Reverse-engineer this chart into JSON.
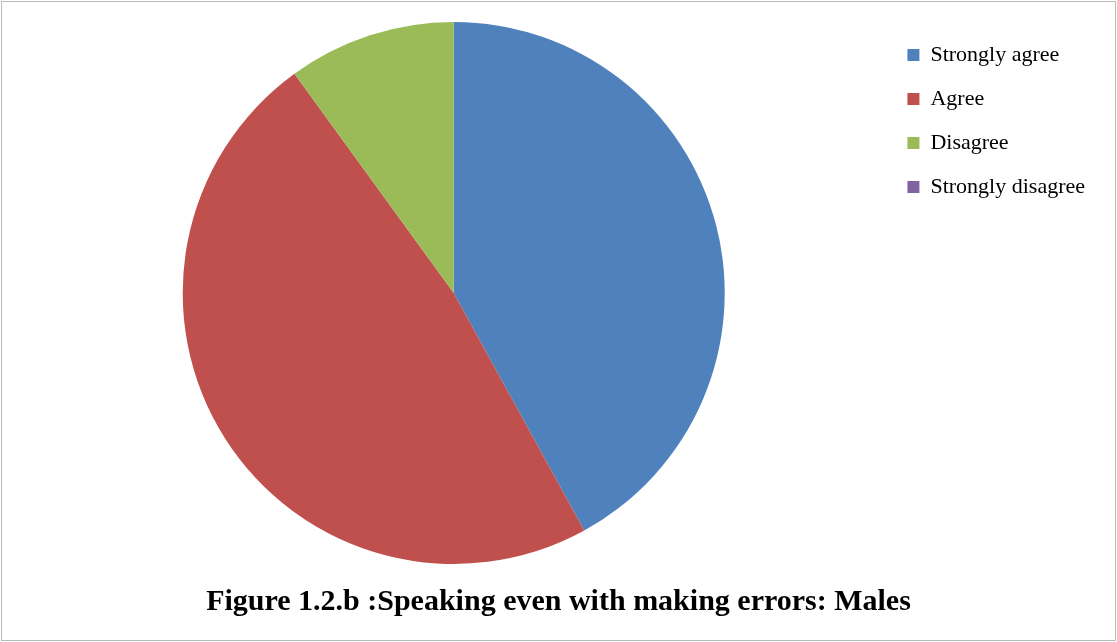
{
  "chart_data": {
    "type": "pie",
    "title": "Figure 1.2.b :Speaking even with making errors: Males",
    "categories": [
      "Strongly agree",
      "Agree",
      "Disagree",
      "Strongly disagree"
    ],
    "values": [
      42,
      48,
      10,
      0
    ],
    "colors": [
      "#4f81bd",
      "#c0504d",
      "#9bbb59",
      "#8064a2"
    ],
    "legend": "right"
  }
}
